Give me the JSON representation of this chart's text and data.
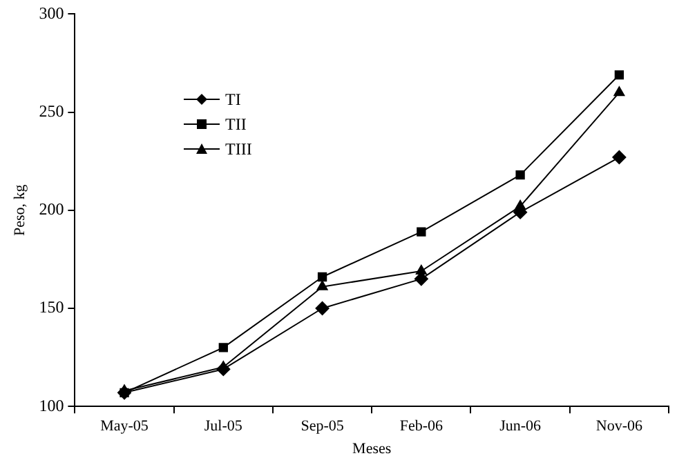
{
  "chart_data": {
    "type": "line",
    "xlabel": "Meses",
    "ylabel": "Peso, kg",
    "categories": [
      "May-05",
      "Jul-05",
      "Sep-05",
      "Feb-06",
      "Jun-06",
      "Nov-06"
    ],
    "series": [
      {
        "name": "TI",
        "color": "#000000",
        "marker": "diamond",
        "values": [
          107,
          119,
          150,
          165,
          199,
          227
        ]
      },
      {
        "name": "TII",
        "color": "#000000",
        "marker": "square",
        "values": [
          107,
          130,
          166,
          189,
          218,
          269
        ]
      },
      {
        "name": "TIII",
        "color": "#000000",
        "marker": "triangle",
        "values": [
          108,
          120,
          161,
          169,
          202,
          260
        ]
      }
    ],
    "ylim": [
      100,
      300
    ],
    "yticks": [
      100,
      150,
      200,
      250,
      300
    ],
    "grid": false,
    "legend": "top left",
    "line_style": "solid"
  }
}
